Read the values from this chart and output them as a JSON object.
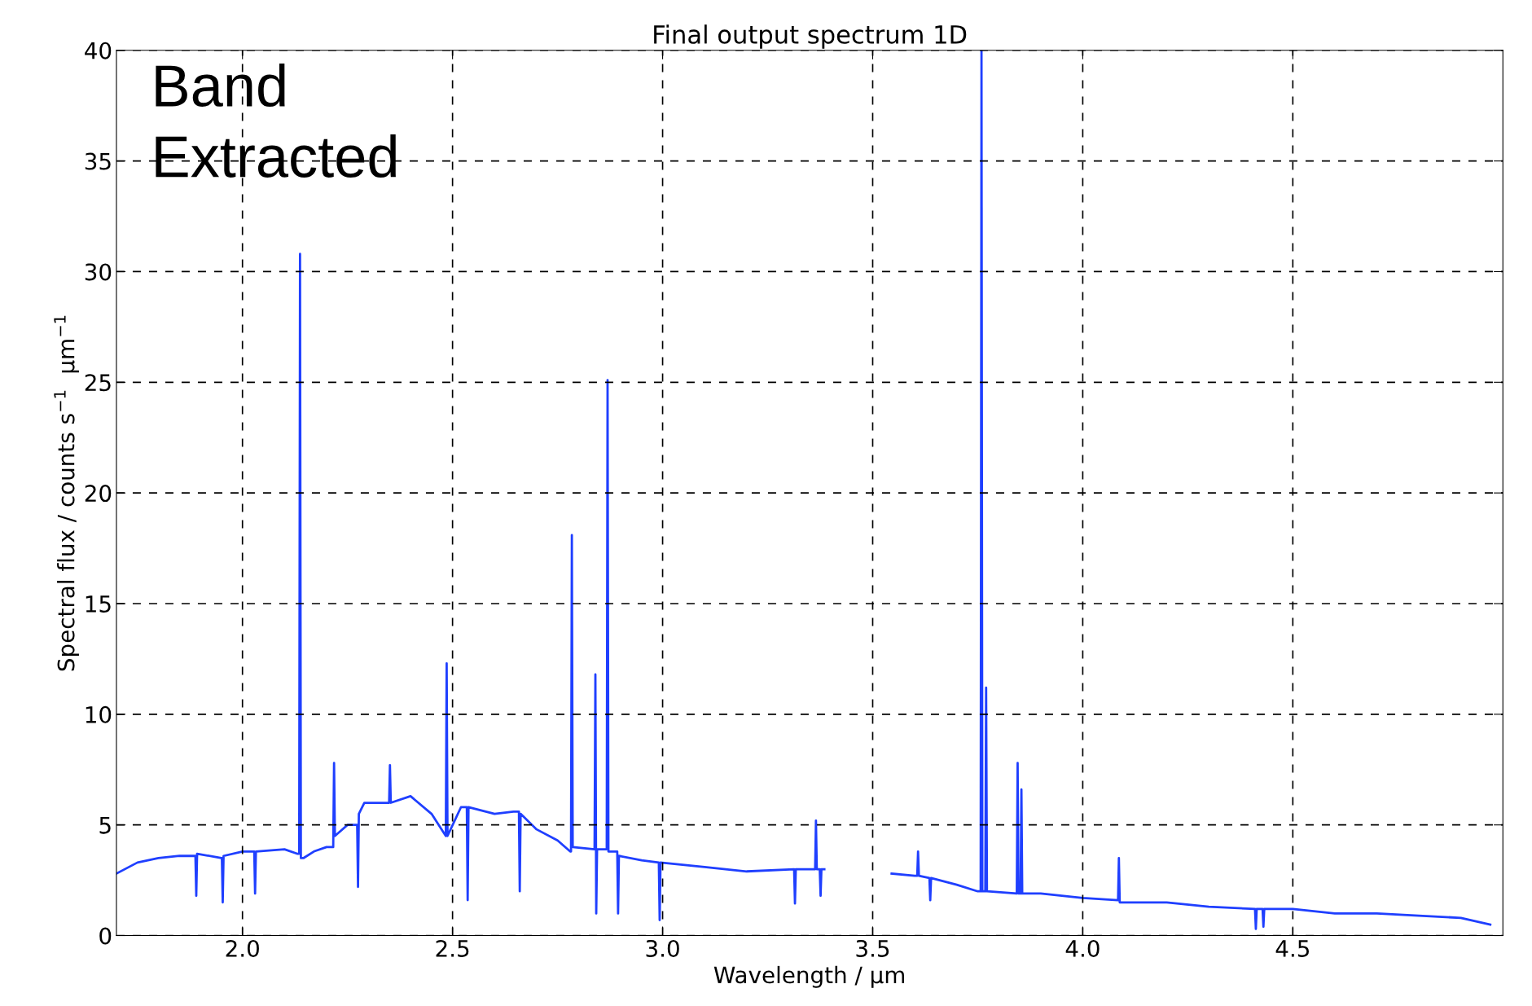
{
  "chart_data": {
    "type": "line",
    "title": "Final output spectrum 1D",
    "xlabel": "Wavelength / μm",
    "ylabel": "Spectral flux / counts s$^{−1}$  μm$^{−1}$",
    "annotations": [
      "Band",
      "Extracted"
    ],
    "x": [
      1.7,
      1.75,
      1.8,
      1.85,
      1.888,
      1.89,
      1.892,
      1.95,
      1.951,
      1.953,
      1.955,
      2.0,
      2.028,
      2.03,
      2.032,
      2.1,
      2.13,
      2.135,
      2.137,
      2.139,
      2.145,
      2.17,
      2.2,
      2.216,
      2.218,
      2.22,
      2.25,
      2.273,
      2.275,
      2.277,
      2.29,
      2.33,
      2.349,
      2.351,
      2.353,
      2.4,
      2.45,
      2.484,
      2.486,
      2.488,
      2.52,
      2.534,
      2.536,
      2.538,
      2.6,
      2.645,
      2.658,
      2.66,
      2.662,
      2.7,
      2.75,
      2.78,
      2.782,
      2.784,
      2.786,
      2.838,
      2.84,
      2.842,
      2.844,
      2.846,
      2.867,
      2.869,
      2.871,
      2.892,
      2.894,
      2.896,
      2.95,
      2.991,
      2.993,
      2.995,
      3.1,
      3.2,
      3.313,
      3.315,
      3.317,
      3.363,
      3.365,
      3.367,
      3.374,
      3.376,
      3.378,
      3.385,
      3.47,
      3.545,
      3.6,
      3.606,
      3.608,
      3.61,
      3.635,
      3.637,
      3.639,
      3.7,
      3.75,
      3.757,
      3.759,
      3.761,
      3.768,
      3.77,
      3.772,
      3.843,
      3.845,
      3.847,
      3.852,
      3.854,
      3.856,
      3.9,
      4.0,
      4.084,
      4.086,
      4.088,
      4.2,
      4.3,
      4.41,
      4.412,
      4.414,
      4.428,
      4.43,
      4.432,
      4.5,
      4.6,
      4.7,
      4.8,
      4.9,
      4.97
    ],
    "series": [
      {
        "color": "#1f3fff",
        "values": [
          2.8,
          3.3,
          3.5,
          3.6,
          3.6,
          1.8,
          3.7,
          3.5,
          3.5,
          1.5,
          3.6,
          3.8,
          3.8,
          1.9,
          3.8,
          3.9,
          3.7,
          3.7,
          30.8,
          3.5,
          3.5,
          3.8,
          4.0,
          4.0,
          7.8,
          4.5,
          5.0,
          5.0,
          2.2,
          5.5,
          6.0,
          6.0,
          6.0,
          7.7,
          6.0,
          6.3,
          5.5,
          4.5,
          12.3,
          4.5,
          5.8,
          5.8,
          1.6,
          5.8,
          5.5,
          5.6,
          5.6,
          2.0,
          5.5,
          4.8,
          4.3,
          3.8,
          3.8,
          18.1,
          4.0,
          3.9,
          11.8,
          1.0,
          3.9,
          3.9,
          3.9,
          25.1,
          3.8,
          3.8,
          1.0,
          3.6,
          3.4,
          3.3,
          0.7,
          3.3,
          3.1,
          2.9,
          3.0,
          1.45,
          3.0,
          3.0,
          5.2,
          3.0,
          3.0,
          1.8,
          3.0,
          3.0,
          null,
          2.8,
          2.7,
          2.7,
          3.8,
          2.7,
          2.6,
          1.6,
          2.6,
          2.3,
          2.0,
          2.0,
          40,
          2.0,
          2.0,
          11.2,
          2.0,
          1.9,
          7.8,
          1.9,
          1.9,
          6.6,
          1.9,
          1.9,
          1.7,
          1.6,
          3.5,
          1.5,
          1.5,
          1.3,
          1.2,
          0.3,
          1.2,
          1.2,
          0.4,
          1.2,
          1.2,
          1.0,
          1.0,
          0.9,
          0.8,
          0.5
        ]
      }
    ],
    "xlim": [
      1.7,
      5.0
    ],
    "ylim": [
      0,
      40
    ],
    "xticks": [
      {
        "value": 2.0,
        "label": "2.0"
      },
      {
        "value": 2.5,
        "label": "2.5"
      },
      {
        "value": 3.0,
        "label": "3.0"
      },
      {
        "value": 3.5,
        "label": "3.5"
      },
      {
        "value": 4.0,
        "label": "4.0"
      },
      {
        "value": 4.5,
        "label": "4.5"
      }
    ],
    "yticks": [
      0,
      5,
      10,
      15,
      20,
      25,
      30,
      35,
      40
    ],
    "grid": true
  }
}
